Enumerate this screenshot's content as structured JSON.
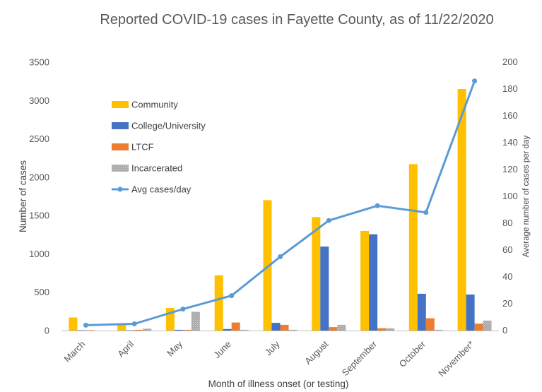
{
  "chart_data": {
    "type": "bar",
    "title": "Reported COVID-19 cases in Fayette County, as of 11/22/2020",
    "xlabel": "Month  of illness onset (or testing)",
    "ylabel": "Number  of cases",
    "y2label": "Average number of cases per day",
    "categories": [
      "March",
      "April",
      "May",
      "June",
      "July",
      "August",
      "September",
      "October",
      "November*"
    ],
    "ylim": [
      0,
      3500
    ],
    "y_ticks": [
      "0",
      "500",
      "1000",
      "1500",
      "2000",
      "2500",
      "3000",
      "3500"
    ],
    "y2lim": [
      0,
      200
    ],
    "y2_ticks": [
      "0",
      "20",
      "40",
      "60",
      "80",
      "100",
      "120",
      "140",
      "160",
      "180",
      "200"
    ],
    "grid": false,
    "legend_position": "upper-left inside plot",
    "series": [
      {
        "name": "Community",
        "kind": "bar",
        "axis": "left",
        "color": "#FFC000",
        "values": [
          170,
          80,
          295,
          720,
          1700,
          1480,
          1300,
          2170,
          3150
        ]
      },
      {
        "name": "College/University",
        "kind": "bar",
        "axis": "left",
        "color": "#4472C4",
        "values": [
          5,
          5,
          10,
          20,
          100,
          1095,
          1255,
          480,
          470
        ]
      },
      {
        "name": "LTCF",
        "kind": "bar",
        "axis": "left",
        "color": "#ED7D31",
        "values": [
          5,
          10,
          10,
          105,
          75,
          45,
          30,
          160,
          90
        ]
      },
      {
        "name": "Incarcerated",
        "kind": "bar",
        "axis": "left",
        "color": "#A5A5A5",
        "pattern": "dotted",
        "values": [
          0,
          25,
          245,
          10,
          10,
          75,
          30,
          10,
          130
        ]
      },
      {
        "name": "Avg cases/day",
        "kind": "line",
        "axis": "right",
        "color": "#5B9BD5",
        "marker": "circle",
        "values": [
          4,
          5,
          16,
          26,
          55,
          82,
          93,
          88,
          186
        ]
      }
    ]
  }
}
